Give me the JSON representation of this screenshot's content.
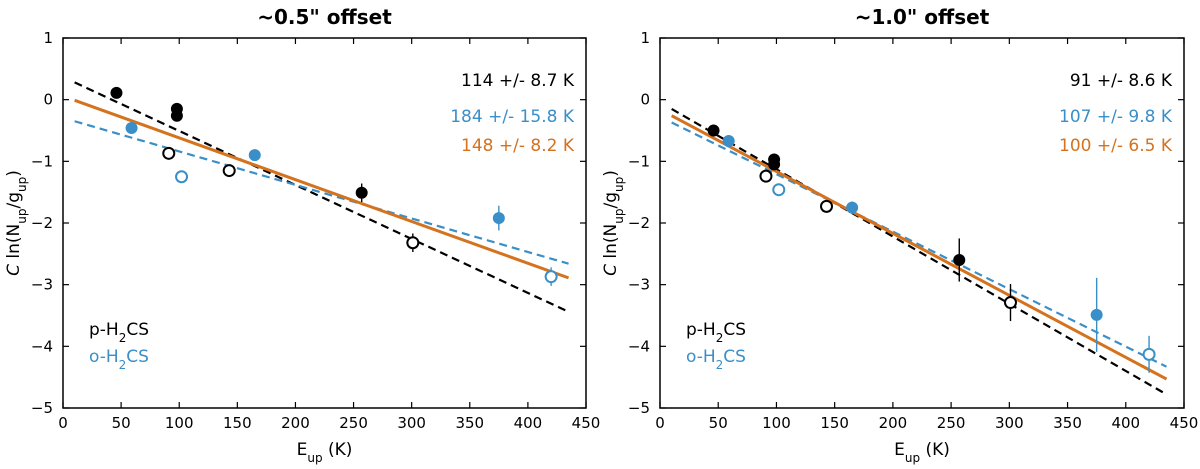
{
  "chart_data": [
    {
      "type": "scatter",
      "title": "~0.5\" offset",
      "xlabel": "E_up (K)",
      "ylabel": "C ln(N_up/g_up)",
      "xlim": [
        0,
        450
      ],
      "ylim": [
        -5,
        1
      ],
      "xticks": [
        0,
        50,
        100,
        150,
        200,
        250,
        300,
        350,
        400,
        450
      ],
      "yticks": [
        1,
        0,
        -1,
        -2,
        -3,
        -4,
        -5
      ],
      "colors": {
        "para": "#000000",
        "ortho": "#3a8fc8",
        "combined": "#d4721e"
      },
      "legend": {
        "para": "p-H2CS",
        "ortho": "o-H2CS",
        "placement": "lower-left"
      },
      "fit_labels": [
        {
          "text": "114 +/- 8.7 K",
          "series": "para"
        },
        {
          "text": "184 +/- 15.8 K",
          "series": "ortho"
        },
        {
          "text": "148 +/- 8.2 K",
          "series": "combined"
        }
      ],
      "fit_lines": [
        {
          "series": "para",
          "style": "dashed",
          "x": [
            10,
            435
          ],
          "y": [
            0.28,
            -3.44
          ]
        },
        {
          "series": "ortho",
          "style": "dashed",
          "x": [
            10,
            435
          ],
          "y": [
            -0.35,
            -2.66
          ]
        },
        {
          "series": "combined",
          "style": "solid",
          "x": [
            10,
            435
          ],
          "y": [
            -0.01,
            -2.89
          ]
        }
      ],
      "points": [
        {
          "series": "para",
          "x": 46,
          "y": 0.11,
          "err": 0.06,
          "filled": true
        },
        {
          "series": "para",
          "x": 98,
          "y": -0.15,
          "err": 0.06,
          "filled": true
        },
        {
          "series": "para",
          "x": 98,
          "y": -0.26,
          "err": 0.06,
          "filled": true
        },
        {
          "series": "para",
          "x": 91,
          "y": -0.87,
          "err": 0.06,
          "filled": false
        },
        {
          "series": "para",
          "x": 143,
          "y": -1.15,
          "err": 0.06,
          "filled": false
        },
        {
          "series": "para",
          "x": 257,
          "y": -1.51,
          "err": 0.15,
          "filled": true
        },
        {
          "series": "para",
          "x": 301,
          "y": -2.32,
          "err": 0.15,
          "filled": false
        },
        {
          "series": "ortho",
          "x": 59,
          "y": -0.46,
          "err": 0.06,
          "filled": true
        },
        {
          "series": "ortho",
          "x": 102,
          "y": -1.25,
          "err": 0.06,
          "filled": false
        },
        {
          "series": "ortho",
          "x": 165,
          "y": -0.9,
          "err": 0.06,
          "filled": true
        },
        {
          "series": "ortho",
          "x": 375,
          "y": -1.92,
          "err": 0.2,
          "filled": true
        },
        {
          "series": "ortho",
          "x": 420,
          "y": -2.87,
          "err": 0.15,
          "filled": false
        }
      ]
    },
    {
      "type": "scatter",
      "title": "~1.0\" offset",
      "xlabel": "E_up (K)",
      "ylabel": "C ln(N_up/g_up)",
      "xlim": [
        0,
        450
      ],
      "ylim": [
        -5,
        1
      ],
      "xticks": [
        0,
        50,
        100,
        150,
        200,
        250,
        300,
        350,
        400,
        450
      ],
      "yticks": [
        1,
        0,
        -1,
        -2,
        -3,
        -4,
        -5
      ],
      "colors": {
        "para": "#000000",
        "ortho": "#3a8fc8",
        "combined": "#d4721e"
      },
      "legend": {
        "para": "p-H2CS",
        "ortho": "o-H2CS",
        "placement": "lower-left"
      },
      "fit_labels": [
        {
          "text": "91 +/- 8.6 K",
          "series": "para"
        },
        {
          "text": "107 +/- 9.8 K",
          "series": "ortho"
        },
        {
          "text": "100 +/- 6.5 K",
          "series": "combined"
        }
      ],
      "fit_lines": [
        {
          "series": "para",
          "style": "dashed",
          "x": [
            10,
            435
          ],
          "y": [
            -0.15,
            -4.78
          ]
        },
        {
          "series": "ortho",
          "style": "dashed",
          "x": [
            10,
            435
          ],
          "y": [
            -0.37,
            -4.33
          ]
        },
        {
          "series": "combined",
          "style": "solid",
          "x": [
            10,
            435
          ],
          "y": [
            -0.26,
            -4.53
          ]
        }
      ],
      "points": [
        {
          "series": "para",
          "x": 46,
          "y": -0.5,
          "err": 0.08,
          "filled": true
        },
        {
          "series": "para",
          "x": 98,
          "y": -0.97,
          "err": 0.08,
          "filled": true
        },
        {
          "series": "para",
          "x": 98,
          "y": -1.05,
          "err": 0.08,
          "filled": true
        },
        {
          "series": "para",
          "x": 91,
          "y": -1.24,
          "err": 0.08,
          "filled": false
        },
        {
          "series": "para",
          "x": 143,
          "y": -1.73,
          "err": 0.1,
          "filled": false
        },
        {
          "series": "para",
          "x": 257,
          "y": -2.6,
          "err": 0.35,
          "filled": true
        },
        {
          "series": "para",
          "x": 301,
          "y": -3.29,
          "err": 0.3,
          "filled": false
        },
        {
          "series": "ortho",
          "x": 59,
          "y": -0.67,
          "err": 0.08,
          "filled": true
        },
        {
          "series": "ortho",
          "x": 102,
          "y": -1.46,
          "err": 0.08,
          "filled": false
        },
        {
          "series": "ortho",
          "x": 165,
          "y": -1.75,
          "err": 0.1,
          "filled": true
        },
        {
          "series": "ortho",
          "x": 375,
          "y": -3.49,
          "err": 0.6,
          "filled": true
        },
        {
          "series": "ortho",
          "x": 420,
          "y": -4.13,
          "err": 0.3,
          "filled": false
        }
      ]
    }
  ]
}
